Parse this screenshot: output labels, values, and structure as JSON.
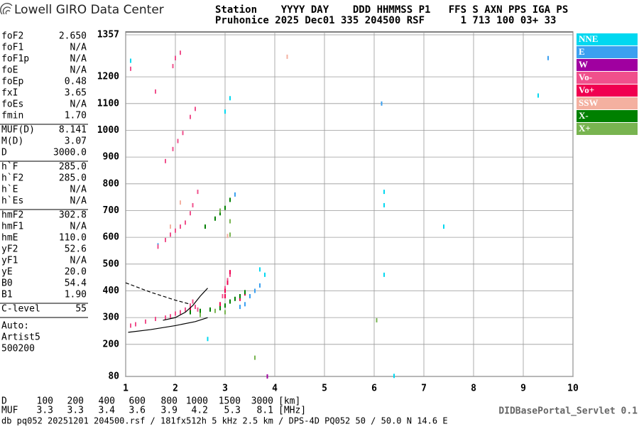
{
  "header": {
    "title": "Lowell GIRO Data Center",
    "line1": "Station    YYYY DAY    DDD HHMMSS P1   FFS S AXN PPS IGA PS",
    "line2": "Pruhonice 2025 Dec01 335 204500 RSF      1 713 100 03+ 33"
  },
  "params": [
    [
      [
        "foF2",
        "2.650"
      ],
      [
        "foF1",
        "N/A"
      ],
      [
        "foF1p",
        "N/A"
      ],
      [
        "foE",
        "N/A"
      ],
      [
        "foEp",
        "0.48"
      ],
      [
        "fxI",
        "3.65"
      ],
      [
        "foEs",
        "N/A"
      ],
      [
        "fmin",
        "1.70"
      ]
    ],
    [
      [
        "MUF(D)",
        "8.141"
      ],
      [
        "M(D)",
        "3.07"
      ],
      [
        "D",
        "3000.0"
      ]
    ],
    [
      [
        "h`F",
        "285.0"
      ],
      [
        "h`F2",
        "285.0"
      ],
      [
        "h`E",
        "N/A"
      ],
      [
        "h`Es",
        "N/A"
      ]
    ],
    [
      [
        "hmF2",
        "302.8"
      ],
      [
        "hmF1",
        "N/A"
      ],
      [
        "hmE",
        "110.0"
      ],
      [
        "yF2",
        "52.6"
      ],
      [
        "yF1",
        "N/A"
      ],
      [
        "yE",
        "20.0"
      ],
      [
        "B0",
        "54.4"
      ],
      [
        "B1",
        "1.90"
      ]
    ],
    [
      [
        "C-level",
        "55"
      ]
    ]
  ],
  "autoscaling": [
    "Auto:",
    "Artist5",
    "500200"
  ],
  "chart_data": {
    "type": "scatter",
    "xlim": [
      1,
      10
    ],
    "xticks": [
      1,
      2,
      3,
      4,
      5,
      6,
      7,
      8,
      9,
      10
    ],
    "ylim": [
      80,
      1357
    ],
    "yticks": [
      80,
      200,
      300,
      400,
      500,
      600,
      700,
      800,
      900,
      1000,
      1100,
      1200,
      1357
    ],
    "grid": true,
    "series": [
      {
        "name": "NNE",
        "color": "#00d8f0",
        "x": [
          1.1,
          3.1,
          6.2,
          6.2,
          6.2,
          9.3,
          3.7,
          3.8,
          3.0,
          7.4,
          6.4,
          2.65
        ],
        "values": [
          1260,
          1120,
          770,
          720,
          460,
          1130,
          480,
          460,
          1070,
          640,
          82,
          220
        ]
      },
      {
        "name": "E",
        "color": "#3ba0f0",
        "x": [
          3.3,
          3.4,
          3.5,
          3.6,
          3.7,
          9.5,
          6.15,
          1.65,
          3.2
        ],
        "values": [
          340,
          350,
          380,
          400,
          420,
          1270,
          1100,
          570,
          760
        ]
      },
      {
        "name": "W",
        "color": "#a000a0",
        "x": [
          2.0,
          3.85
        ],
        "values": [
          1270,
          80
        ]
      },
      {
        "name": "Vo-",
        "color": "#f0508c",
        "x": [
          1.1,
          1.2,
          1.4,
          1.6,
          1.8,
          1.9,
          2.0,
          2.1,
          2.2,
          2.3,
          2.35,
          2.4,
          2.45,
          1.65,
          1.8,
          1.9,
          2.0,
          2.1,
          2.2,
          2.3,
          2.35,
          2.45,
          1.8,
          1.95,
          2.05,
          2.15,
          2.3,
          2.4,
          1.1,
          1.95,
          2.0,
          2.1,
          1.6,
          2.95,
          3.0,
          3.05,
          3.1
        ],
        "values": [
          270,
          275,
          285,
          295,
          300,
          305,
          315,
          320,
          330,
          345,
          360,
          340,
          330,
          565,
          590,
          610,
          625,
          640,
          655,
          690,
          720,
          770,
          885,
          930,
          960,
          990,
          1050,
          1080,
          1230,
          1240,
          1270,
          1290,
          1145,
          380,
          410,
          440,
          460
        ]
      },
      {
        "name": "Vo+",
        "color": "#f00050",
        "x": [
          2.9,
          3.0,
          3.05,
          3.1,
          3.0,
          2.3,
          3.3,
          3.4
        ],
        "values": [
          350,
          400,
          430,
          470,
          380,
          330,
          370,
          390
        ]
      },
      {
        "name": "SSW",
        "color": "#f4b0a0",
        "x": [
          4.25,
          3.05,
          2.1,
          1.9
        ],
        "values": [
          1275,
          605,
          730,
          640
        ]
      },
      {
        "name": "X-",
        "color": "#008000",
        "x": [
          2.3,
          2.5,
          2.7,
          2.9,
          3.0,
          3.1,
          3.2,
          3.3,
          3.4,
          2.6,
          2.8,
          2.9,
          3.0,
          3.1
        ],
        "values": [
          320,
          325,
          330,
          335,
          345,
          360,
          370,
          380,
          395,
          640,
          670,
          690,
          710,
          740
        ]
      },
      {
        "name": "X+",
        "color": "#78b450",
        "x": [
          2.5,
          2.8,
          3.0,
          3.1,
          2.9,
          3.1,
          6.05,
          3.6
        ],
        "values": [
          310,
          325,
          320,
          660,
          700,
          610,
          290,
          150
        ]
      }
    ],
    "traces": [
      {
        "dash": false,
        "x": [
          1.05,
          1.5,
          2.0,
          2.4,
          2.65
        ],
        "values": [
          245,
          255,
          270,
          285,
          300
        ]
      },
      {
        "dash": false,
        "x": [
          1.75,
          2.0,
          2.2,
          2.35,
          2.5,
          2.65
        ],
        "values": [
          290,
          300,
          320,
          345,
          380,
          410
        ]
      },
      {
        "dash": true,
        "x": [
          1.0,
          1.5,
          2.0,
          2.3
        ],
        "values": [
          430,
          395,
          365,
          350
        ]
      }
    ]
  },
  "muf_table": {
    "d_label": "D",
    "d_values": [
      100,
      200,
      400,
      600,
      800,
      1000,
      1500,
      3000
    ],
    "d_unit": "[km]",
    "muf_label": "MUF",
    "muf_values": [
      3.3,
      3.3,
      3.4,
      3.6,
      3.9,
      4.2,
      5.3,
      8.1
    ],
    "muf_unit": "[MHz]"
  },
  "servlet": "DIDBasePortal_Servlet 0.1",
  "footer": "db pq052 20251201 204500.rsf / 181fx512h 5 kHz 2.5 km / DPS-4D PQ052 50 / 50.0 N 14.6 E"
}
